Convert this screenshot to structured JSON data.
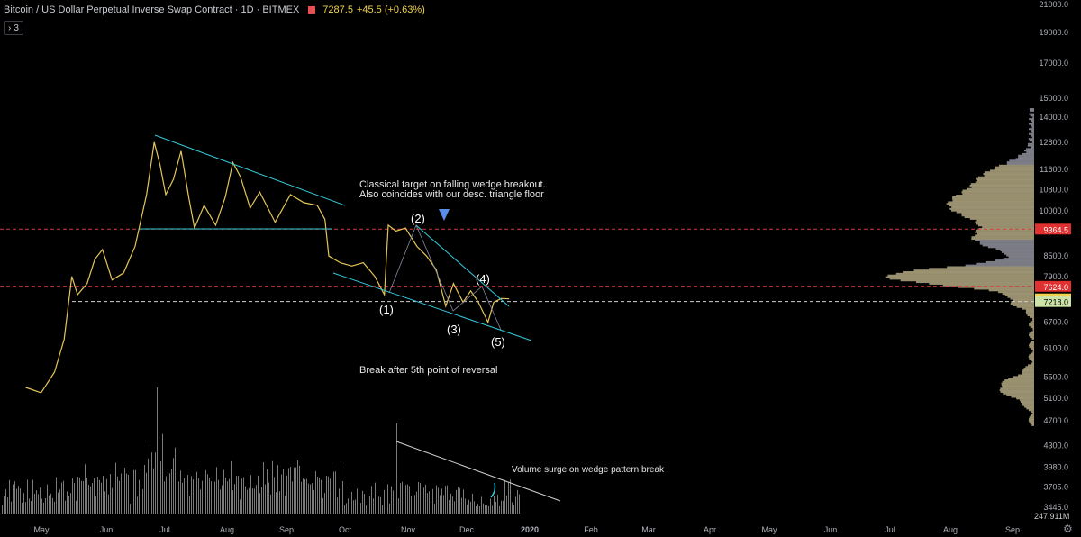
{
  "header": {
    "symbol_title": "Bitcoin / US Dollar Perpetual Inverse Swap Contract · 1D · BITMEX",
    "last_price": "7287.5",
    "change": "+45.5 (+0.63%)",
    "indicators_toggle": "3"
  },
  "colors": {
    "price_line": "#e6c65a",
    "trendline": "#35c8d8",
    "volume_bar": "#7a7a7a",
    "level_line": "#d83b3b",
    "level_white": "#cfcfcf",
    "profile_tan": "#bdb38a",
    "profile_grey": "#9a9aa6"
  },
  "chart_data": {
    "type": "line",
    "title": "Bitcoin / US Dollar Perpetual Inverse Swap Contract",
    "timeframe": "1D",
    "x_labels": [
      "May",
      "Jun",
      "Jul",
      "Aug",
      "Sep",
      "Oct",
      "Nov",
      "Dec",
      "2020",
      "Feb",
      "Mar",
      "Apr",
      "May",
      "Jun",
      "Jul",
      "Aug",
      "Sep"
    ],
    "y_ticks": [
      21000,
      19000,
      17000,
      15000,
      14000,
      12800,
      11600,
      10800,
      10000,
      9364.5,
      8500,
      7900,
      7624,
      7287.5,
      7218,
      6700,
      6100,
      5500,
      5100,
      4700,
      4300,
      3980,
      3705,
      3445
    ],
    "y_tick_labels": [
      "21000.0",
      "19000.0",
      "17000.0",
      "15000.0",
      "14000.0",
      "12800.0",
      "11600.0",
      "10800.0",
      "10000.0",
      "9364.5",
      "8500.0",
      "7900.0",
      "7624.0",
      "7287.5",
      "7218.0",
      "6700.0",
      "6100.0",
      "5500.0",
      "5100.0",
      "4700.0",
      "4300.0",
      "3980.0",
      "3705.0",
      "3445.0"
    ],
    "y_scale": "log",
    "price_series": [
      {
        "date": "2019-04-20",
        "close": 5300
      },
      {
        "date": "2019-04-28",
        "close": 5200
      },
      {
        "date": "2019-05-05",
        "close": 5600
      },
      {
        "date": "2019-05-10",
        "close": 6300
      },
      {
        "date": "2019-05-14",
        "close": 7900
      },
      {
        "date": "2019-05-17",
        "close": 7400
      },
      {
        "date": "2019-05-22",
        "close": 7700
      },
      {
        "date": "2019-05-26",
        "close": 8400
      },
      {
        "date": "2019-05-30",
        "close": 8700
      },
      {
        "date": "2019-06-04",
        "close": 7800
      },
      {
        "date": "2019-06-10",
        "close": 8000
      },
      {
        "date": "2019-06-16",
        "close": 8800
      },
      {
        "date": "2019-06-22",
        "close": 10600
      },
      {
        "date": "2019-06-26",
        "close": 12800
      },
      {
        "date": "2019-06-29",
        "close": 11800
      },
      {
        "date": "2019-07-02",
        "close": 10600
      },
      {
        "date": "2019-07-06",
        "close": 11200
      },
      {
        "date": "2019-07-10",
        "close": 12400
      },
      {
        "date": "2019-07-14",
        "close": 10500
      },
      {
        "date": "2019-07-17",
        "close": 9400
      },
      {
        "date": "2019-07-22",
        "close": 10200
      },
      {
        "date": "2019-07-28",
        "close": 9500
      },
      {
        "date": "2019-08-02",
        "close": 10500
      },
      {
        "date": "2019-08-06",
        "close": 11900
      },
      {
        "date": "2019-08-10",
        "close": 11300
      },
      {
        "date": "2019-08-15",
        "close": 10100
      },
      {
        "date": "2019-08-20",
        "close": 10700
      },
      {
        "date": "2019-08-28",
        "close": 9600
      },
      {
        "date": "2019-09-05",
        "close": 10600
      },
      {
        "date": "2019-09-12",
        "close": 10300
      },
      {
        "date": "2019-09-19",
        "close": 10200
      },
      {
        "date": "2019-09-23",
        "close": 9700
      },
      {
        "date": "2019-09-25",
        "close": 8500
      },
      {
        "date": "2019-10-01",
        "close": 8300
      },
      {
        "date": "2019-10-07",
        "close": 8200
      },
      {
        "date": "2019-10-13",
        "close": 8300
      },
      {
        "date": "2019-10-19",
        "close": 7900
      },
      {
        "date": "2019-10-24",
        "close": 7400
      },
      {
        "date": "2019-10-26",
        "close": 9500
      },
      {
        "date": "2019-10-30",
        "close": 9300
      },
      {
        "date": "2019-11-04",
        "close": 9400
      },
      {
        "date": "2019-11-10",
        "close": 8800
      },
      {
        "date": "2019-11-15",
        "close": 8500
      },
      {
        "date": "2019-11-20",
        "close": 8100
      },
      {
        "date": "2019-11-25",
        "close": 7100
      },
      {
        "date": "2019-11-29",
        "close": 7700
      },
      {
        "date": "2019-12-04",
        "close": 7200
      },
      {
        "date": "2019-12-08",
        "close": 7500
      },
      {
        "date": "2019-12-12",
        "close": 7200
      },
      {
        "date": "2019-12-17",
        "close": 6700
      },
      {
        "date": "2019-12-20",
        "close": 7200
      },
      {
        "date": "2019-12-24",
        "close": 7300
      },
      {
        "date": "2019-12-28",
        "close": 7287.5
      }
    ],
    "horizontal_levels": [
      {
        "price": 9364.5,
        "label": "9364.5",
        "color": "#e0302f"
      },
      {
        "price": 7624.0,
        "label": "7624.0",
        "color": "#e0302f"
      },
      {
        "price": 7287.5,
        "label": "7287.5",
        "color": "#f0d34a"
      },
      {
        "price": 7218.0,
        "label": "7218.0",
        "color": "#cde4a8"
      }
    ],
    "wave_labels": [
      "(1)",
      "(2)",
      "(3)",
      "(4)",
      "(5)"
    ],
    "annotations": [
      "Classical target on falling wedge breakout.",
      "Also coincides with our desc. triangle floor",
      "Break after 5th point of reversal",
      "Volume surge on wedge pattern break"
    ],
    "volume_readout": "247.911M",
    "grid": false,
    "legend": "none"
  }
}
